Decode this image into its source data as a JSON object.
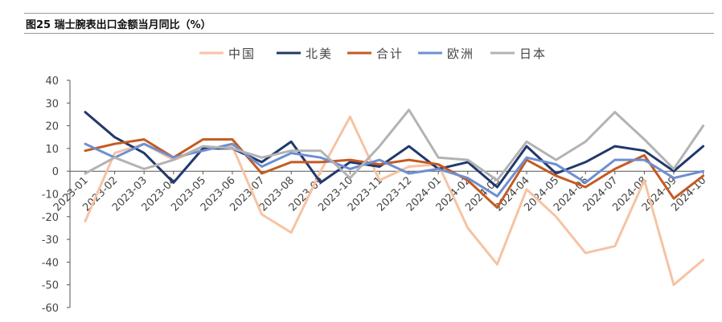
{
  "figure": {
    "title": "图25 瑞士腕表出口金额当月同比（%）"
  },
  "chart_data": {
    "type": "line",
    "title": "",
    "xlabel": "",
    "ylabel": "",
    "ylim": [
      -60,
      40
    ],
    "yticks": [
      40,
      30,
      20,
      10,
      0,
      -10,
      -20,
      -30,
      -40,
      -50,
      -60
    ],
    "grid": false,
    "legend_position": "top",
    "categories": [
      "2023-01",
      "2023-02",
      "2023-03",
      "2023-04",
      "2023-05",
      "2023-06",
      "2023-07",
      "2023-08",
      "2023-09",
      "2023-10",
      "2023-11",
      "2023-12",
      "2024-01",
      "2024-02",
      "2024-03",
      "2024-04",
      "2024-05",
      "2024-06",
      "2024-07",
      "2024-08",
      "2024-09",
      "2024-10"
    ],
    "tick_labels": [
      "2023-01",
      "2023-02",
      "2023-03",
      "2023-04",
      "2023-05",
      "2023-06",
      "2023-07",
      "2023-08",
      "2023-09",
      "2023-10",
      "2023-11",
      "2023-12",
      "2024-01",
      "2024-02",
      "2024-03",
      "2024-04",
      "2024-05",
      "2024-06",
      "2024-07",
      "2024-08",
      "2024-09",
      "2024-10"
    ],
    "series": [
      {
        "name": "中国",
        "color": "#f6c3a3",
        "values": [
          -22,
          8,
          12,
          5,
          10,
          11,
          -19,
          -27,
          0,
          24,
          -4,
          2,
          3,
          -25,
          -41,
          -8,
          -20,
          -36,
          -33,
          -4,
          -50,
          -39
        ]
      },
      {
        "name": "北美",
        "color": "#21396b",
        "values": [
          26,
          15,
          8,
          -5,
          10,
          10,
          4,
          13,
          -5,
          4,
          2,
          11,
          1,
          4,
          -7,
          11,
          -1,
          4,
          11,
          9,
          0,
          11
        ]
      },
      {
        "name": "合计",
        "color": "#c55a21",
        "values": [
          9,
          12,
          14,
          6,
          14,
          14,
          -1,
          4,
          4,
          5,
          3,
          5,
          3,
          -4,
          -16,
          5,
          -2,
          -7,
          1,
          7,
          -12,
          -2
        ]
      },
      {
        "name": "欧洲",
        "color": "#6d8fd2",
        "values": [
          12,
          6,
          12,
          6,
          9,
          12,
          2,
          8,
          6,
          1,
          5,
          -1,
          1,
          -3,
          -11,
          6,
          3,
          -5,
          5,
          5,
          -3,
          0
        ]
      },
      {
        "name": "日本",
        "color": "#b3b3b3",
        "values": [
          -1,
          6,
          1,
          5,
          11,
          10,
          6,
          9,
          9,
          -3,
          11,
          27,
          6,
          5,
          -4,
          13,
          5,
          13,
          26,
          14,
          1,
          20
        ]
      }
    ]
  }
}
